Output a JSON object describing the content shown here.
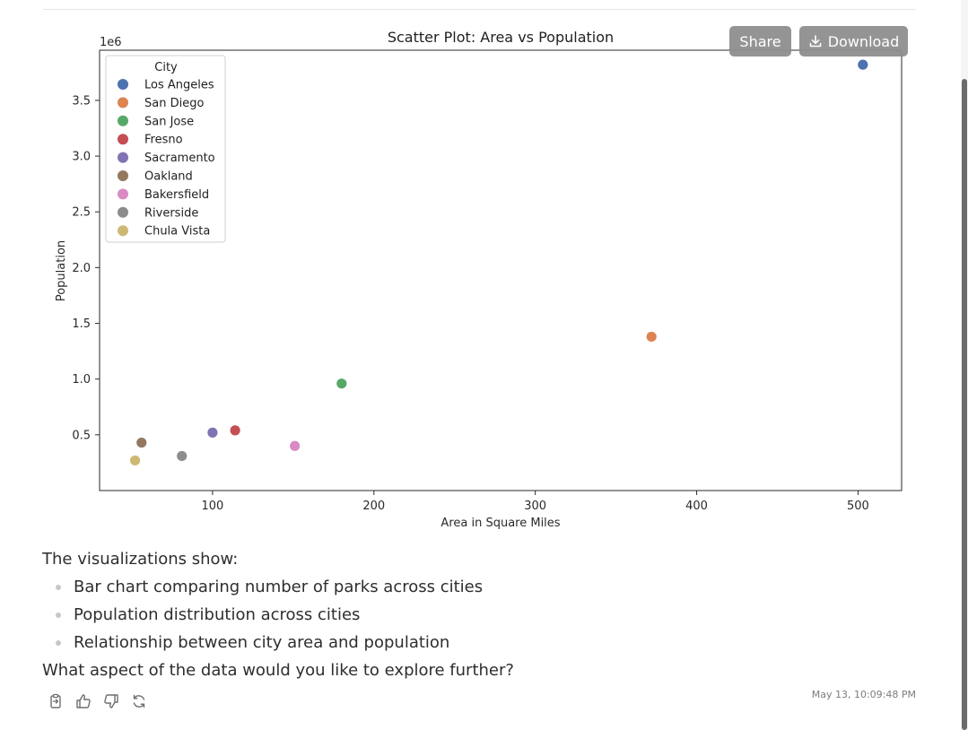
{
  "toolbar": {
    "share_label": "Share",
    "download_label": "Download"
  },
  "chart_data": {
    "type": "scatter",
    "title": "Scatter Plot: Area vs Population",
    "xlabel": "Area in Square Miles",
    "ylabel": "Population",
    "y_offset_label": "1e6",
    "legend_title": "City",
    "legend_position": "upper-left",
    "xlim": [
      30,
      527
    ],
    "ylim": [
      0.0,
      3.95
    ],
    "x_ticks": [
      100,
      200,
      300,
      400,
      500
    ],
    "x_tick_labels": [
      "100",
      "200",
      "300",
      "400",
      "500"
    ],
    "y_ticks": [
      0.5,
      1.0,
      1.5,
      2.0,
      2.5,
      3.0,
      3.5
    ],
    "y_tick_labels": [
      "0.5",
      "1.0",
      "1.5",
      "2.0",
      "2.5",
      "3.0",
      "3.5"
    ],
    "points": [
      {
        "name": "Los Angeles",
        "x": 503,
        "y": 3.82,
        "color": "#4c72b0"
      },
      {
        "name": "San Diego",
        "x": 372,
        "y": 1.38,
        "color": "#dd8452"
      },
      {
        "name": "San Jose",
        "x": 180,
        "y": 0.96,
        "color": "#55a868"
      },
      {
        "name": "Fresno",
        "x": 114,
        "y": 0.54,
        "color": "#c44e52"
      },
      {
        "name": "Sacramento",
        "x": 100,
        "y": 0.52,
        "color": "#8172b3"
      },
      {
        "name": "Oakland",
        "x": 56,
        "y": 0.43,
        "color": "#937860"
      },
      {
        "name": "Bakersfield",
        "x": 151,
        "y": 0.4,
        "color": "#da8bc3"
      },
      {
        "name": "Riverside",
        "x": 81,
        "y": 0.31,
        "color": "#8c8c8c"
      },
      {
        "name": "Chula Vista",
        "x": 52,
        "y": 0.27,
        "color": "#ccb974"
      }
    ]
  },
  "content": {
    "intro": "The visualizations show:",
    "bullets": [
      "Bar chart comparing number of parks across cities",
      "Population distribution across cities",
      "Relationship between city area and population"
    ],
    "question": "What aspect of the data would you like to explore further?"
  },
  "footer": {
    "timestamp": "May 13, 10:09:48 PM"
  }
}
